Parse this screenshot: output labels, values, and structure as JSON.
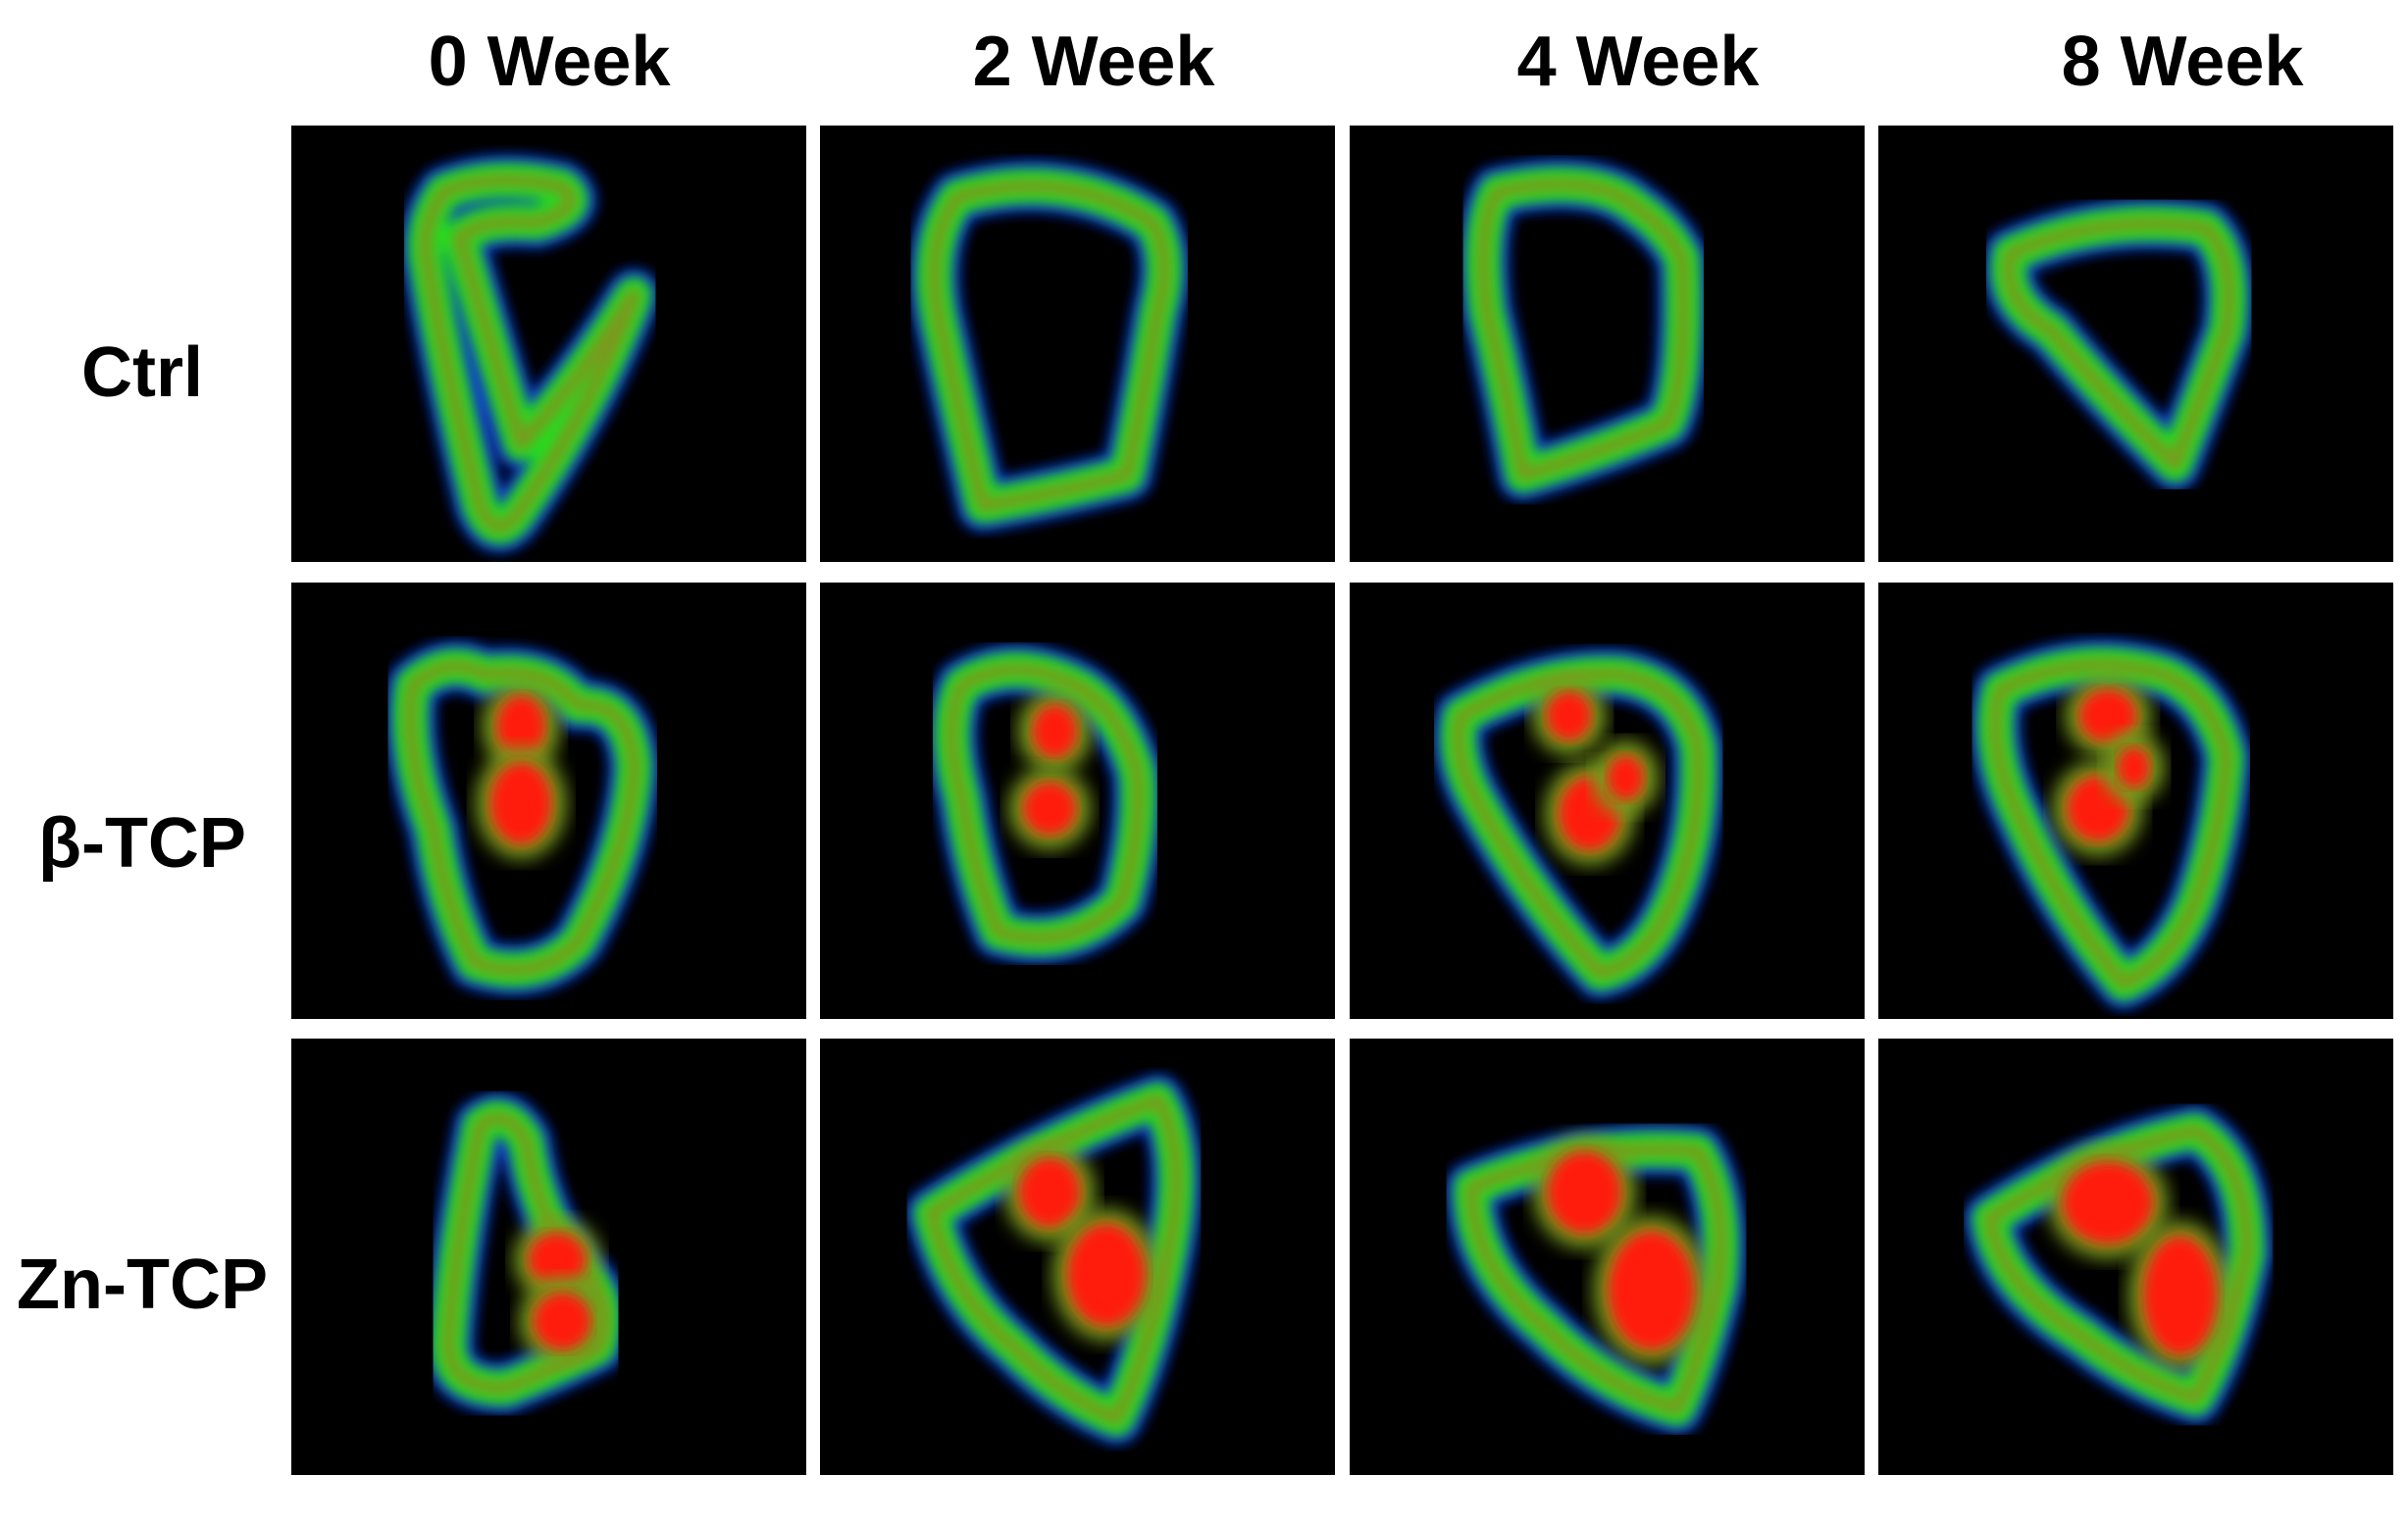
{
  "columns": [
    "0 Week",
    "2 Week",
    "4 Week",
    "8 Week"
  ],
  "rows": [
    "Ctrl",
    "β-TCP",
    "Zn-TCP"
  ],
  "colors": {
    "background": "#000000",
    "outer_rim": "#1030d0",
    "bone_green": "#22dd22",
    "dense_red": "#ff1a0a",
    "mixed": "#7a9a1a"
  },
  "panels": [
    {
      "row": "Ctrl",
      "week": "0 Week",
      "red_level": 0
    },
    {
      "row": "Ctrl",
      "week": "2 Week",
      "red_level": 0
    },
    {
      "row": "Ctrl",
      "week": "4 Week",
      "red_level": 0
    },
    {
      "row": "Ctrl",
      "week": "8 Week",
      "red_level": 0
    },
    {
      "row": "β-TCP",
      "week": "0 Week",
      "red_level": 0.35
    },
    {
      "row": "β-TCP",
      "week": "2 Week",
      "red_level": 0.3
    },
    {
      "row": "β-TCP",
      "week": "4 Week",
      "red_level": 0.45
    },
    {
      "row": "β-TCP",
      "week": "8 Week",
      "red_level": 0.45
    },
    {
      "row": "Zn-TCP",
      "week": "0 Week",
      "red_level": 0.5
    },
    {
      "row": "Zn-TCP",
      "week": "2 Week",
      "red_level": 0.7
    },
    {
      "row": "Zn-TCP",
      "week": "4 Week",
      "red_level": 0.75
    },
    {
      "row": "Zn-TCP",
      "week": "8 Week",
      "red_level": 0.8
    }
  ]
}
